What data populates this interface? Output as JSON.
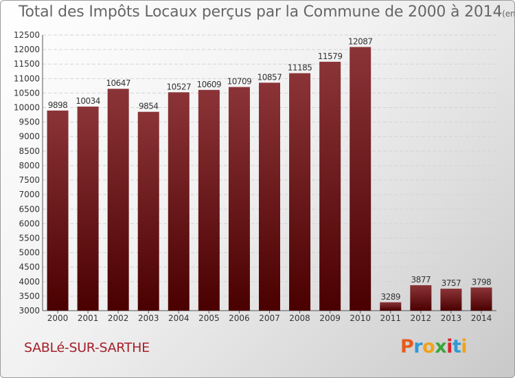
{
  "title": "Total des Impôts Locaux perçus par la Commune de 2000 à 2014",
  "title_unit": "(en milliers d'€)",
  "commune": "SABLé-SUR-SARTHE",
  "logo": {
    "letters": [
      "P",
      "r",
      "o",
      "x",
      "i",
      "t",
      "i"
    ],
    "colors": [
      "#e85a1c",
      "#2f9ad6",
      "#f0a21b",
      "#3aa639",
      "#d9262e",
      "#2f9ad6",
      "#f0a21b"
    ]
  },
  "colors": {
    "bar_top": "#8b3438",
    "bar_bottom": "#4a0000",
    "label": "#333333"
  },
  "chart_data": {
    "type": "bar",
    "title": "Total des Impôts Locaux perçus par la Commune de 2000 à 2014",
    "xlabel": "",
    "ylabel": "(en milliers d'€)",
    "ylim": [
      3000,
      12500
    ],
    "yticks": [
      3000,
      3500,
      4000,
      4500,
      5000,
      5500,
      6000,
      6500,
      7000,
      7500,
      8000,
      8500,
      9000,
      9500,
      10000,
      10500,
      11000,
      11500,
      12000,
      12500
    ],
    "categories": [
      "2000",
      "2001",
      "2002",
      "2003",
      "2004",
      "2005",
      "2006",
      "2007",
      "2008",
      "2009",
      "2010",
      "2011",
      "2012",
      "2013",
      "2014"
    ],
    "values": [
      9898,
      10034,
      10647,
      9854,
      10527,
      10609,
      10709,
      10857,
      11185,
      11579,
      12087,
      3289,
      3877,
      3757,
      3798
    ],
    "grid": true
  }
}
